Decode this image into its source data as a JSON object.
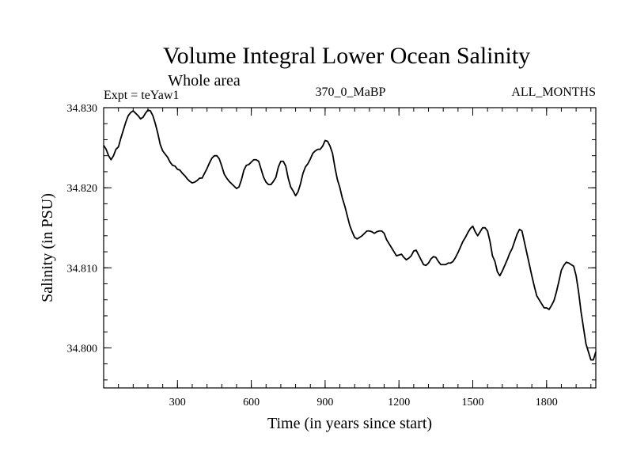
{
  "chart_data": {
    "type": "line",
    "title": "Volume Integral Lower Ocean Salinity",
    "subtitle": "Whole area",
    "left_label": "Expt = teYaw1",
    "center_label": "370_0_MaBP",
    "right_label": "ALL_MONTHS",
    "xlabel": "Time (in years since start)",
    "ylabel": "Salinity (in PSU)",
    "xlim": [
      0,
      2000
    ],
    "ylim": [
      34.795,
      34.83
    ],
    "x_ticks": [
      300,
      600,
      900,
      1200,
      1500,
      1800
    ],
    "x_tick_labels": [
      "300",
      "600",
      "900",
      "1200",
      "1500",
      "1800"
    ],
    "y_ticks": [
      34.8,
      34.81,
      34.82,
      34.83
    ],
    "y_tick_labels": [
      "34.800",
      "34.810",
      "34.820",
      "34.830"
    ],
    "y_minor_step": 0.002,
    "x_minor_step": 60,
    "series": [
      {
        "name": "salinity",
        "x": [
          0,
          10,
          20,
          30,
          40,
          50,
          60,
          70,
          80,
          90,
          100,
          110,
          120,
          130,
          140,
          150,
          160,
          170,
          180,
          190,
          200,
          210,
          220,
          230,
          240,
          250,
          260,
          270,
          280,
          290,
          300,
          310,
          320,
          330,
          340,
          350,
          360,
          370,
          380,
          390,
          400,
          410,
          420,
          430,
          440,
          450,
          460,
          470,
          480,
          490,
          500,
          510,
          520,
          530,
          540,
          550,
          560,
          570,
          580,
          590,
          600,
          610,
          620,
          630,
          640,
          650,
          660,
          670,
          680,
          690,
          700,
          710,
          720,
          730,
          740,
          750,
          760,
          770,
          780,
          790,
          800,
          810,
          820,
          830,
          840,
          850,
          860,
          870,
          880,
          890,
          900,
          910,
          920,
          930,
          940,
          950,
          960,
          970,
          980,
          990,
          1000,
          1010,
          1020,
          1030,
          1040,
          1050,
          1060,
          1070,
          1080,
          1090,
          1100,
          1110,
          1120,
          1130,
          1140,
          1150,
          1160,
          1170,
          1180,
          1190,
          1200,
          1210,
          1220,
          1230,
          1240,
          1250,
          1260,
          1270,
          1280,
          1290,
          1300,
          1310,
          1320,
          1330,
          1340,
          1350,
          1360,
          1370,
          1380,
          1390,
          1400,
          1410,
          1420,
          1430,
          1440,
          1450,
          1460,
          1470,
          1480,
          1490,
          1500,
          1510,
          1520,
          1530,
          1540,
          1550,
          1560,
          1570,
          1580,
          1590,
          1600,
          1610,
          1620,
          1630,
          1640,
          1650,
          1660,
          1670,
          1680,
          1690,
          1700,
          1710,
          1720,
          1730,
          1740,
          1750,
          1760,
          1770,
          1780,
          1790,
          1800,
          1810,
          1820,
          1830,
          1840,
          1850,
          1860,
          1870,
          1880,
          1890,
          1900,
          1910,
          1920,
          1930,
          1940,
          1950,
          1960,
          1970,
          1980,
          1990,
          2000
        ],
        "values": [
          34.8253,
          34.8248,
          34.824,
          34.8235,
          34.824,
          34.8248,
          34.8251,
          34.8262,
          34.8272,
          34.8282,
          34.829,
          34.8294,
          34.8296,
          34.8293,
          34.829,
          34.8286,
          34.8288,
          34.8293,
          34.8297,
          34.8296,
          34.829,
          34.828,
          34.8268,
          34.8254,
          34.8246,
          34.8242,
          34.8238,
          34.8232,
          34.8228,
          34.8227,
          34.8223,
          34.8222,
          34.8218,
          34.8215,
          34.8211,
          34.8208,
          34.8206,
          34.8207,
          34.8209,
          34.8212,
          34.8212,
          34.8218,
          34.8224,
          34.8231,
          34.8237,
          34.824,
          34.824,
          34.8236,
          34.8227,
          34.8217,
          34.8212,
          34.8208,
          34.8205,
          34.8202,
          34.8199,
          34.8201,
          34.821,
          34.8222,
          34.8228,
          34.8229,
          34.8232,
          34.8235,
          34.8235,
          34.8233,
          34.8223,
          34.8213,
          34.8207,
          34.8204,
          34.8204,
          34.8208,
          34.8213,
          34.8226,
          34.8233,
          34.8233,
          34.8227,
          34.8212,
          34.8201,
          34.8196,
          34.819,
          34.8195,
          34.8205,
          34.8218,
          34.8226,
          34.823,
          34.8236,
          34.8243,
          34.8246,
          34.8248,
          34.8248,
          34.8252,
          34.8259,
          34.8258,
          34.8252,
          34.8243,
          34.8225,
          34.821,
          34.82,
          34.8187,
          34.8177,
          34.8165,
          34.8153,
          34.8145,
          34.8138,
          34.8136,
          34.8138,
          34.814,
          34.8143,
          34.8146,
          34.8146,
          34.8145,
          34.8143,
          34.8145,
          34.8146,
          34.8146,
          34.8143,
          34.8135,
          34.813,
          34.8125,
          34.812,
          34.8115,
          34.8116,
          34.8117,
          34.8113,
          34.811,
          34.8112,
          34.8115,
          34.8121,
          34.8122,
          34.8116,
          34.811,
          34.8104,
          34.8103,
          34.8106,
          34.8111,
          34.8114,
          34.8113,
          34.8108,
          34.8104,
          34.8104,
          34.8104,
          34.8106,
          34.8106,
          34.8108,
          34.8113,
          34.8119,
          34.8126,
          34.8133,
          34.8138,
          34.8144,
          34.8149,
          34.8152,
          34.8145,
          34.814,
          34.8145,
          34.815,
          34.815,
          34.8146,
          34.8133,
          34.8115,
          34.8108,
          34.8095,
          34.809,
          34.8096,
          34.8103,
          34.811,
          34.8118,
          34.8124,
          34.8133,
          34.8142,
          34.8148,
          34.8146,
          34.8132,
          34.8118,
          34.8104,
          34.809,
          34.8077,
          34.8065,
          34.806,
          34.8055,
          34.805,
          34.805,
          34.8048,
          34.8053,
          34.8059,
          34.807,
          34.8083,
          34.8097,
          34.8103,
          34.8107,
          34.8106,
          34.8104,
          34.8102,
          34.809,
          34.807,
          34.8045,
          34.8025,
          34.8005,
          34.7995,
          34.7985,
          34.7985,
          34.7995
        ]
      }
    ]
  }
}
